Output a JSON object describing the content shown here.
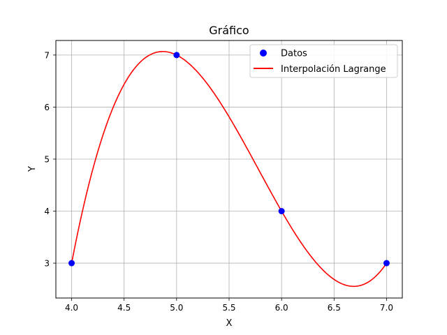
{
  "chart_data": {
    "type": "line",
    "title": "Gráfico",
    "xlabel": "X",
    "ylabel": "Y",
    "xlim": [
      3.85,
      7.15
    ],
    "ylim": [
      2.33,
      7.28
    ],
    "grid": true,
    "legend_position": "top-right",
    "x_ticks": [
      4.0,
      4.5,
      5.0,
      5.5,
      6.0,
      6.5,
      7.0
    ],
    "x_tick_labels": [
      "4.0",
      "4.5",
      "5.0",
      "5.5",
      "6.0",
      "6.5",
      "7.0"
    ],
    "y_ticks": [
      3,
      4,
      5,
      6,
      7
    ],
    "y_tick_labels": [
      "3",
      "4",
      "5",
      "6",
      "7"
    ],
    "series": [
      {
        "name": "Datos",
        "kind": "scatter",
        "color": "#0000ff",
        "x": [
          4.0,
          5.0,
          6.0,
          7.0
        ],
        "y": [
          3,
          7,
          4,
          3
        ]
      },
      {
        "name": "Interpolación Lagrange",
        "kind": "line",
        "color": "#ff0000",
        "method": "lagrange",
        "nodes_x": [
          4.0,
          5.0,
          6.0,
          7.0
        ],
        "nodes_y": [
          3,
          7,
          4,
          3
        ]
      }
    ]
  }
}
